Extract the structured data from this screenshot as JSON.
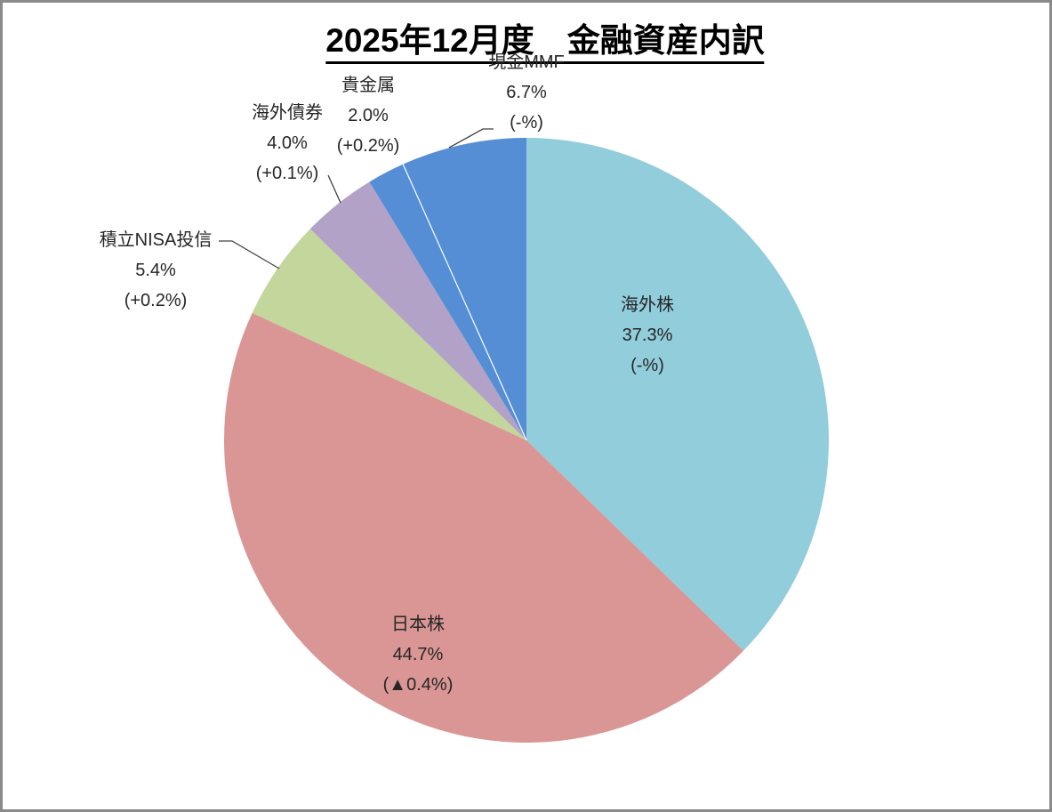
{
  "title": "2025年12月度　金融資産内訳",
  "chart_data": {
    "type": "pie",
    "title": "2025年12月度　金融資産内訳",
    "start_angle_deg": 0,
    "direction": "clockwise",
    "legend": "none",
    "label_format": "name / percent / change-vs-previous",
    "slices": [
      {
        "label": "海外株",
        "value_pct": 37.3,
        "pct_text": "37.3%",
        "change_text": "(-%)",
        "color": "#92CDDC",
        "label_placement": "inside"
      },
      {
        "label": "日本株",
        "value_pct": 44.7,
        "pct_text": "44.7%",
        "change_text": "(▲0.4%)",
        "color": "#D99694",
        "label_placement": "inside"
      },
      {
        "label": "積立NISA投信",
        "value_pct": 5.4,
        "pct_text": "5.4%",
        "change_text": "(+0.2%)",
        "color": "#C3D69B",
        "label_placement": "outside"
      },
      {
        "label": "海外債券",
        "value_pct": 4.0,
        "pct_text": "4.0%",
        "change_text": "(+0.1%)",
        "color": "#B2A2C7",
        "label_placement": "outside"
      },
      {
        "label": "貴金属",
        "value_pct": 2.0,
        "pct_text": "2.0%",
        "change_text": "(+0.2%)",
        "color": "#558ED5",
        "label_placement": "outside"
      },
      {
        "label": "現金MMF",
        "value_pct": 6.7,
        "pct_text": "6.7%",
        "change_text": "(-%)",
        "color": "#558ED5",
        "label_placement": "outside"
      }
    ]
  },
  "colors": {
    "background": "#ffffff",
    "frame_border": "#8a8a8a",
    "title_text": "#000000",
    "label_text": "#262626",
    "leader_line": "#404040",
    "same_color_divider": "#ffffff"
  }
}
